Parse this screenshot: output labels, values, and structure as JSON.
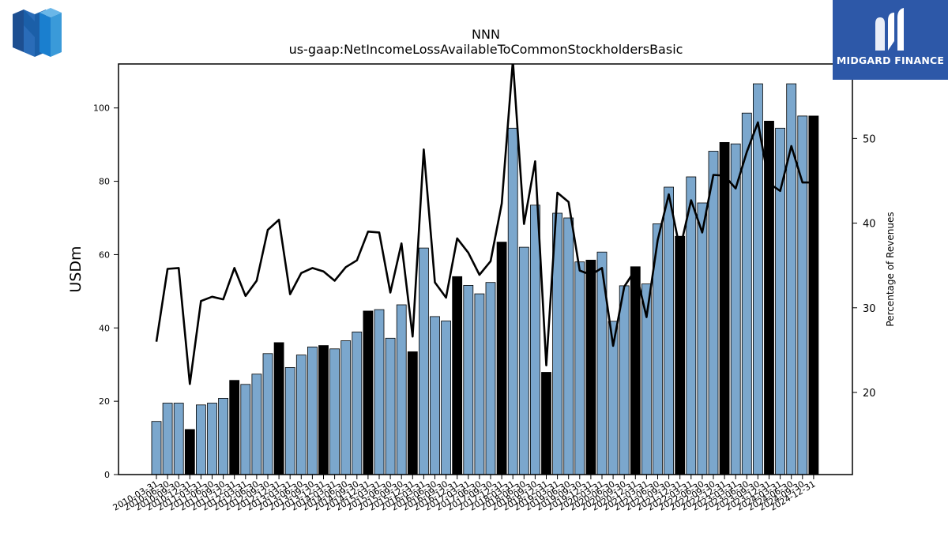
{
  "brand": {
    "left_logo_icon": "nnn-logo-icon",
    "right_logo_text": "MIDGARD FINANCE",
    "right_logo_bg": "#2d58a8"
  },
  "chart_data": {
    "type": "bar",
    "title": "NNN",
    "subtitle": "us-gaap:NetIncomeLossAvailableToCommonStockholdersBasic",
    "ylabel": "USDm",
    "y2label": "Percentage of Revenues",
    "ylim": [
      0,
      112
    ],
    "y2lim": [
      10.3,
      58.8
    ],
    "yticks": [
      0,
      20,
      40,
      60,
      80,
      100
    ],
    "y2ticks": [
      20,
      30,
      40,
      50
    ],
    "colors": {
      "quarter_bar": "#7ba7cd",
      "annual_bar": "#000000",
      "line": "#000000"
    },
    "categories": [
      "2010-03-31",
      "2010-06-30",
      "2010-09-30",
      "2010-12-31",
      "2011-03-31",
      "2011-06-30",
      "2011-09-30",
      "2011-12-31",
      "2012-03-31",
      "2012-06-30",
      "2012-09-30",
      "2012-12-31",
      "2013-03-31",
      "2013-06-30",
      "2013-09-30",
      "2013-12-31",
      "2014-03-31",
      "2014-06-30",
      "2014-09-30",
      "2014-12-31",
      "2015-03-31",
      "2015-06-30",
      "2015-09-30",
      "2015-12-31",
      "2016-03-31",
      "2016-06-30",
      "2016-09-30",
      "2016-12-31",
      "2017-03-31",
      "2017-06-30",
      "2017-09-30",
      "2017-12-31",
      "2018-03-31",
      "2018-06-30",
      "2018-09-30",
      "2018-12-31",
      "2019-03-31",
      "2019-06-30",
      "2019-09-30",
      "2019-12-31",
      "2020-03-31",
      "2020-06-30",
      "2020-09-30",
      "2020-12-31",
      "2021-03-31",
      "2021-06-30",
      "2021-09-30",
      "2021-12-31",
      "2022-03-31",
      "2022-06-30",
      "2022-09-30",
      "2022-12-31",
      "2023-03-31",
      "2023-06-30",
      "2023-09-30",
      "2023-12-31",
      "2024-03-31",
      "2024-06-30",
      "2024-09-30",
      "2024-12-31"
    ],
    "series": [
      {
        "values": [
          14.5,
          19.5,
          19.5,
          12.3,
          19.0,
          19.5,
          20.8,
          25.7,
          24.6,
          27.4,
          33.0,
          36.0,
          29.2,
          32.6,
          34.8,
          35.2,
          34.3,
          36.5,
          38.9,
          44.6,
          45.0,
          37.2,
          46.3,
          33.5,
          61.8,
          43.1,
          41.9,
          54.0,
          51.6,
          49.3,
          52.4,
          63.4,
          94.5,
          62.0,
          73.5,
          27.9,
          71.3,
          70.0,
          58.0,
          58.5,
          60.7,
          41.8,
          51.5,
          56.7,
          52.0,
          68.4,
          78.4,
          65.0,
          81.2,
          74.1,
          88.2,
          90.6,
          90.2,
          98.6,
          106.6,
          96.4,
          94.5,
          106.6,
          97.8,
          97.8
        ],
        "annual": [
          false,
          false,
          false,
          true,
          false,
          false,
          false,
          true,
          false,
          false,
          false,
          true,
          false,
          false,
          false,
          true,
          false,
          false,
          false,
          true,
          false,
          false,
          false,
          true,
          false,
          false,
          false,
          true,
          false,
          false,
          false,
          true,
          false,
          false,
          false,
          true,
          false,
          false,
          false,
          true,
          false,
          false,
          false,
          true,
          false,
          false,
          false,
          true,
          false,
          false,
          false,
          true,
          false,
          false,
          false,
          true,
          false,
          false,
          false,
          true
        ]
      },
      {
        "axis": "right",
        "values": [
          26.0,
          34.6,
          34.7,
          21.0,
          30.8,
          31.3,
          31.0,
          34.7,
          31.4,
          33.2,
          39.2,
          40.4,
          31.6,
          34.1,
          34.7,
          34.3,
          33.2,
          34.8,
          35.6,
          39.0,
          38.9,
          31.8,
          37.6,
          26.6,
          48.7,
          33.0,
          31.2,
          38.2,
          36.5,
          33.9,
          35.5,
          42.3,
          59.2,
          39.9,
          47.3,
          23.2,
          43.6,
          42.5,
          34.4,
          33.9,
          34.7,
          25.5,
          32.5,
          34.5,
          28.9,
          38.0,
          43.4,
          36.9,
          42.7,
          38.9,
          45.7,
          45.6,
          44.1,
          48.4,
          51.9,
          44.7,
          43.8,
          49.1,
          44.8,
          44.8
        ]
      }
    ]
  }
}
